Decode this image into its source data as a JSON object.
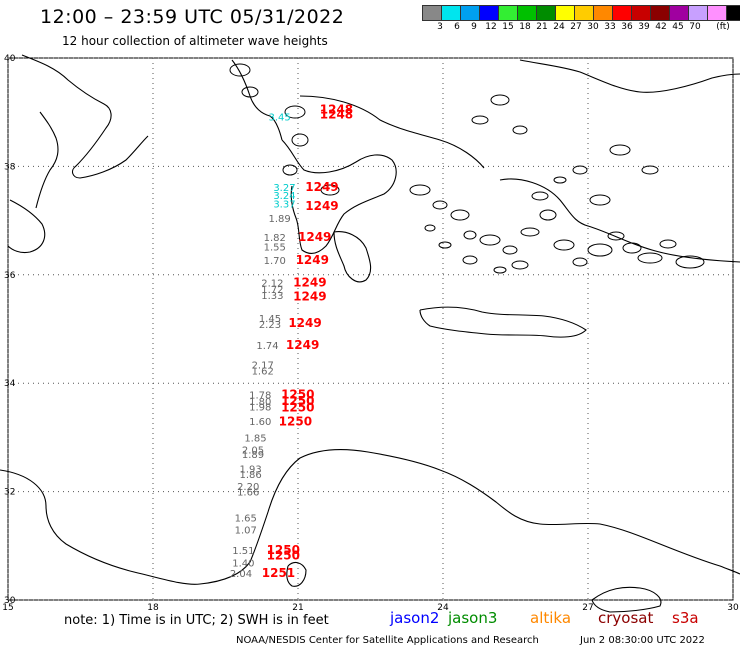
{
  "header": {
    "title": "12:00 – 23:59 UTC 05/31/2022",
    "subtitle": "12 hour collection of altimeter wave heights"
  },
  "legend": {
    "unit": "(ft)",
    "bins": [
      {
        "label": "3",
        "color": "#888888"
      },
      {
        "label": "6",
        "color": "#00e5ee"
      },
      {
        "label": "9",
        "color": "#00a0f0"
      },
      {
        "label": "12",
        "color": "#0000ff"
      },
      {
        "label": "15",
        "color": "#33ee33"
      },
      {
        "label": "18",
        "color": "#00c000"
      },
      {
        "label": "21",
        "color": "#008c00"
      },
      {
        "label": "24",
        "color": "#ffff00"
      },
      {
        "label": "27",
        "color": "#ffcc00"
      },
      {
        "label": "30",
        "color": "#ff8800"
      },
      {
        "label": "33",
        "color": "#ff0000"
      },
      {
        "label": "36",
        "color": "#c80000"
      },
      {
        "label": "39",
        "color": "#8b0000"
      },
      {
        "label": "42",
        "color": "#a000a0"
      },
      {
        "label": "45",
        "color": "#c8a0ff"
      },
      {
        "label": "70",
        "color": "#ff90ff"
      },
      {
        "label": "",
        "color": "#000000"
      }
    ]
  },
  "axes": {
    "lat_labels": [
      "40",
      "38",
      "36",
      "34",
      "32",
      "30"
    ],
    "lon_labels": [
      "15",
      "18",
      "21",
      "24",
      "27",
      "30"
    ]
  },
  "observations": [
    {
      "h": "3.45",
      "c": "#00cccc",
      "lon": 20.85,
      "lat": 38.85
    },
    {
      "h": "3.27",
      "c": "#00cccc",
      "lon": 20.95,
      "lat": 37.55
    },
    {
      "h": "3.24",
      "c": "#00cccc",
      "lon": 20.95,
      "lat": 37.4
    },
    {
      "h": "3.37",
      "c": "#00cccc",
      "lon": 20.95,
      "lat": 37.24
    },
    {
      "h": "1.89",
      "c": "#666666",
      "lon": 20.85,
      "lat": 36.97
    },
    {
      "h": "1.82",
      "c": "#666666",
      "lon": 20.75,
      "lat": 36.62
    },
    {
      "h": "1.55",
      "c": "#666666",
      "lon": 20.75,
      "lat": 36.45
    },
    {
      "h": "1.70",
      "c": "#666666",
      "lon": 20.75,
      "lat": 36.2
    },
    {
      "h": "2.12",
      "c": "#666666",
      "lon": 20.7,
      "lat": 35.78
    },
    {
      "h": "1.72",
      "c": "#666666",
      "lon": 20.7,
      "lat": 35.66
    },
    {
      "h": "1.33",
      "c": "#666666",
      "lon": 20.7,
      "lat": 35.55
    },
    {
      "h": "1.45",
      "c": "#666666",
      "lon": 20.65,
      "lat": 35.13
    },
    {
      "h": "2.23",
      "c": "#666666",
      "lon": 20.65,
      "lat": 35.02
    },
    {
      "h": "1.74",
      "c": "#666666",
      "lon": 20.6,
      "lat": 34.63
    },
    {
      "h": "2.17",
      "c": "#666666",
      "lon": 20.5,
      "lat": 34.27
    },
    {
      "h": "1.62",
      "c": "#666666",
      "lon": 20.5,
      "lat": 34.16
    },
    {
      "h": "1.78",
      "c": "#666666",
      "lon": 20.45,
      "lat": 33.72
    },
    {
      "h": "1.80",
      "c": "#666666",
      "lon": 20.45,
      "lat": 33.6
    },
    {
      "h": "1.98",
      "c": "#666666",
      "lon": 20.45,
      "lat": 33.5
    },
    {
      "h": "1.60",
      "c": "#666666",
      "lon": 20.45,
      "lat": 33.23
    },
    {
      "h": "1.85",
      "c": "#666666",
      "lon": 20.35,
      "lat": 32.92
    },
    {
      "h": "2.05",
      "c": "#666666",
      "lon": 20.3,
      "lat": 32.7
    },
    {
      "h": "1.89",
      "c": "#666666",
      "lon": 20.3,
      "lat": 32.62
    },
    {
      "h": "1.93",
      "c": "#666666",
      "lon": 20.25,
      "lat": 32.35
    },
    {
      "h": "1.86",
      "c": "#666666",
      "lon": 20.25,
      "lat": 32.25
    },
    {
      "h": "2.20",
      "c": "#666666",
      "lon": 20.2,
      "lat": 32.03
    },
    {
      "h": "1.66",
      "c": "#666666",
      "lon": 20.2,
      "lat": 31.93
    },
    {
      "h": "1.65",
      "c": "#666666",
      "lon": 20.15,
      "lat": 31.45
    },
    {
      "h": "1.07",
      "c": "#666666",
      "lon": 20.15,
      "lat": 31.23
    },
    {
      "h": "1.51",
      "c": "#666666",
      "lon": 20.1,
      "lat": 30.85
    },
    {
      "h": "1.40",
      "c": "#666666",
      "lon": 20.1,
      "lat": 30.62
    },
    {
      "h": "2.04",
      "c": "#666666",
      "lon": 20.05,
      "lat": 30.42
    }
  ],
  "times": [
    {
      "t": "1248",
      "c": "#ff0000",
      "lon": 21.45,
      "lat": 38.98
    },
    {
      "t": "1248",
      "c": "#ff0000",
      "lon": 21.45,
      "lat": 38.88
    },
    {
      "t": "1249",
      "c": "#ff0000",
      "lon": 21.15,
      "lat": 37.55
    },
    {
      "t": "1249",
      "c": "#ff0000",
      "lon": 21.15,
      "lat": 37.2
    },
    {
      "t": "1249",
      "c": "#ff0000",
      "lon": 21.0,
      "lat": 36.62
    },
    {
      "t": "1249",
      "c": "#ff0000",
      "lon": 20.95,
      "lat": 36.2
    },
    {
      "t": "1249",
      "c": "#ff0000",
      "lon": 20.9,
      "lat": 35.78
    },
    {
      "t": "1249",
      "c": "#ff0000",
      "lon": 20.9,
      "lat": 35.53
    },
    {
      "t": "1249",
      "c": "#ff0000",
      "lon": 20.8,
      "lat": 35.04
    },
    {
      "t": "1249",
      "c": "#ff0000",
      "lon": 20.75,
      "lat": 34.63
    },
    {
      "t": "1250",
      "c": "#ff0000",
      "lon": 20.65,
      "lat": 33.72
    },
    {
      "t": "1250",
      "c": "#ff0000",
      "lon": 20.65,
      "lat": 33.6
    },
    {
      "t": "1250",
      "c": "#ff0000",
      "lon": 20.65,
      "lat": 33.48
    },
    {
      "t": "1250",
      "c": "#ff0000",
      "lon": 20.6,
      "lat": 33.22
    },
    {
      "t": "1250",
      "c": "#ff0000",
      "lon": 20.35,
      "lat": 30.85
    },
    {
      "t": "1250",
      "c": "#ff0000",
      "lon": 20.35,
      "lat": 30.75
    },
    {
      "t": "1251",
      "c": "#ff0000",
      "lon": 20.25,
      "lat": 30.42
    }
  ],
  "footer": {
    "note": "note:  1) Time is in UTC;  2) SWH is in feet",
    "satellites": [
      {
        "name": "jason2",
        "color": "#0000ff"
      },
      {
        "name": "jason3",
        "color": "#008c00"
      },
      {
        "name": "altika",
        "color": "#ff8800"
      },
      {
        "name": "cryosat",
        "color": "#8b0000"
      },
      {
        "name": "s3a",
        "color": "#c80000"
      }
    ],
    "credit": "NOAA/NESDIS Center for Satellite Applications and Research",
    "generated": "Jun  2 08:30:00 UTC 2022"
  }
}
